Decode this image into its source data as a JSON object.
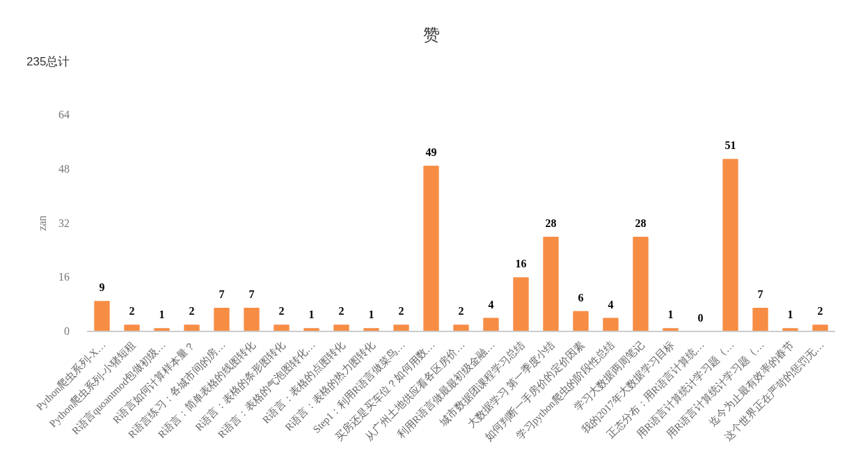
{
  "chart_data": {
    "type": "bar",
    "title": "赞",
    "subtitle": "235总计",
    "ylabel": "zan",
    "categories": [
      "Python爬虫系列-X…",
      "Python爬虫系列-小猪短租",
      "R语言quoantmod包做初级…",
      "R语言如何计算样本量？",
      "R语言练习：各城市间的房…",
      "R语言：简单表格的线图转化",
      "R语言：表格的条形图转化",
      "R语言：表格的气泡图转化…",
      "R语言：表格的点图转化",
      "R语言：表格的热力图转化",
      "Step1：利用R语言做菜鸟…",
      "买房还是买车位？如何用数…",
      "从广州土地供应看各区房价…",
      "利用R语言做最最初级金融…",
      "城市数据团课程学习总结",
      "大数据学习 第一季度小结",
      "如何判断一手房价的定价因素",
      "学习python爬虫的阶段性总结",
      "学习大数据两周笔记",
      "我的2017年大数据学习目标",
      "正态分布：用R语言计算统…",
      "用R语言计算统计学习题（…",
      "用R语言计算统计学习题（…",
      "迄今为止最有效率的春节",
      "这个世界正在严苛的惩罚无…"
    ],
    "values": [
      9,
      2,
      1,
      2,
      7,
      7,
      2,
      1,
      2,
      1,
      2,
      49,
      2,
      4,
      16,
      28,
      6,
      4,
      28,
      1,
      0,
      51,
      7,
      1,
      2
    ],
    "color": "#f78d45",
    "ylim": [
      0,
      64
    ],
    "yticks": [
      0,
      16,
      32,
      48,
      64
    ],
    "grid": false,
    "data_labels": true
  }
}
